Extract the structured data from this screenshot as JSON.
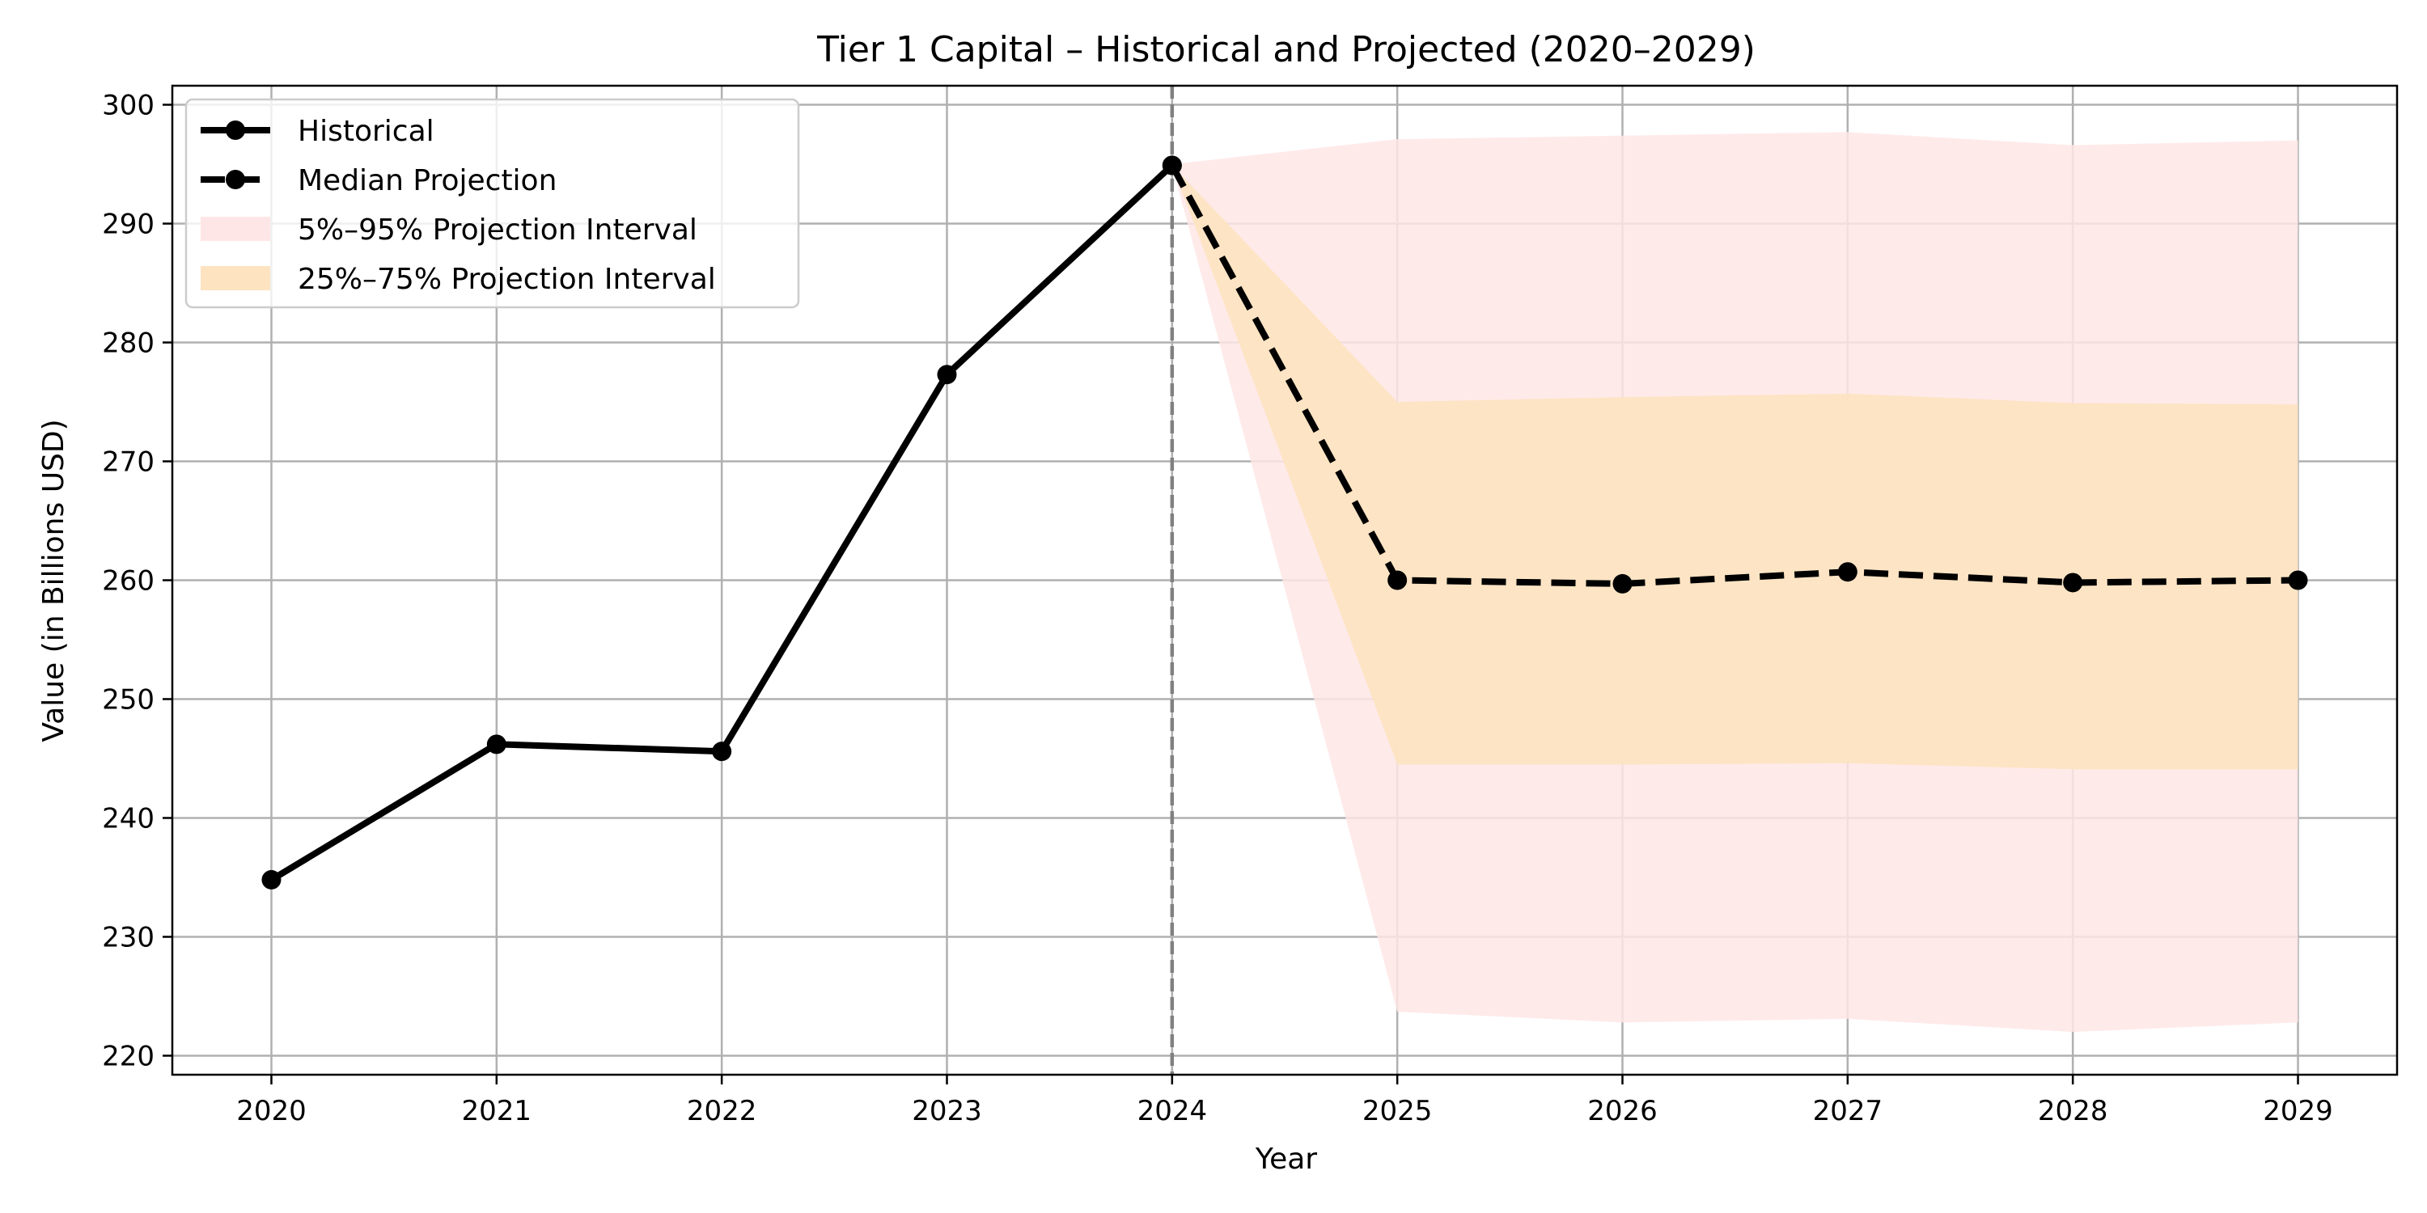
{
  "chart_data": {
    "type": "line",
    "title": "Tier 1 Capital – Historical and Projected (2020–2029)",
    "xlabel": "Year",
    "ylabel": "Value (in Billions USD)",
    "x_ticks": [
      "2020",
      "2021",
      "2022",
      "2023",
      "2024",
      "2025",
      "2026",
      "2027",
      "2028",
      "2029"
    ],
    "y_ticks": [
      220,
      230,
      240,
      250,
      260,
      270,
      280,
      290,
      300
    ],
    "xlim": [
      2019.56,
      2029.44
    ],
    "ylim": [
      218.4,
      301.6
    ],
    "grid": true,
    "legend_position": "top-left",
    "divider_x": 2024,
    "series": [
      {
        "name": "Historical",
        "style": "solid",
        "color": "#000000",
        "x": [
          2020,
          2021,
          2022,
          2023,
          2024
        ],
        "values": [
          234.8,
          246.2,
          245.6,
          277.3,
          294.9
        ]
      },
      {
        "name": "Median Projection",
        "style": "dashed",
        "color": "#000000",
        "x": [
          2024,
          2025,
          2026,
          2027,
          2028,
          2029
        ],
        "values": [
          294.9,
          260.0,
          259.7,
          260.7,
          259.8,
          260.0
        ]
      }
    ],
    "bands": [
      {
        "name": "5%–95% Projection Interval",
        "color": "#ffe6e6",
        "x": [
          2024,
          2025,
          2026,
          2027,
          2028,
          2029
        ],
        "lower": [
          294.9,
          223.7,
          222.8,
          223.1,
          222.0,
          222.8
        ],
        "upper": [
          295.0,
          297.1,
          297.4,
          297.7,
          296.6,
          297.0
        ]
      },
      {
        "name": "25%–75% Projection Interval",
        "color": "#fde3c0",
        "x": [
          2024,
          2025,
          2026,
          2027,
          2028,
          2029
        ],
        "lower": [
          294.9,
          244.5,
          244.5,
          244.6,
          244.1,
          244.1
        ],
        "upper": [
          294.9,
          275.0,
          275.4,
          275.7,
          274.9,
          274.8
        ]
      }
    ]
  }
}
